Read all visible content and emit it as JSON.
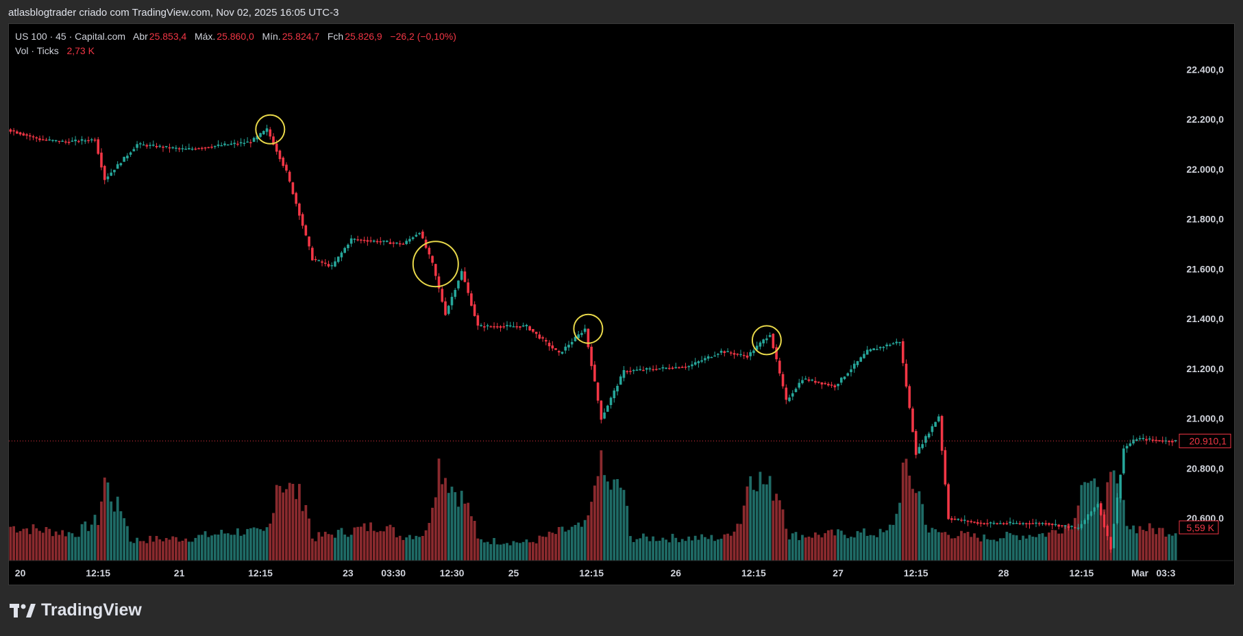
{
  "header": {
    "caption": "atlasblogtrader criado com TradingView.com, Nov 02, 2025 16:05 UTC-3"
  },
  "legend": {
    "symbol": "US 100 · 45 · Capital.com",
    "open_label": "Abr",
    "open": "25.853,4",
    "high_label": "Máx.",
    "high": "25.860,0",
    "low_label": "Mín.",
    "low": "25.824,7",
    "close_label": "Fch",
    "close": "25.826,9",
    "change": "−26,2 (−0,10%)",
    "volume_label": "Vol · Ticks",
    "volume": "2,73 K"
  },
  "brand": {
    "name": "TradingView"
  },
  "colors": {
    "up": "#26a69a",
    "down": "#f23645",
    "vol_up": "#1f6b66",
    "vol_down": "#8a2a2e",
    "highlight": "#e8d84a",
    "background": "#000000"
  },
  "chart_data": {
    "type": "candlestick",
    "y_ticks": [
      "22.400,0",
      "22.200,0",
      "22.000,0",
      "21.800,0",
      "21.600,0",
      "21.400,0",
      "21.200,0",
      "21.000,0",
      "20.800,0",
      "20.600,0"
    ],
    "ylim": [
      20430,
      22580
    ],
    "x_ticks": [
      "20",
      "12:15",
      "21",
      "12:15",
      "23",
      "03:30",
      "12:30",
      "25",
      "12:15",
      "26",
      "12:15",
      "27",
      "12:15",
      "28",
      "12:15",
      "Mar",
      "03:3"
    ],
    "x_tick_positions": [
      3,
      27,
      52,
      77,
      104,
      118,
      136,
      155,
      179,
      205,
      229,
      255,
      279,
      306,
      330,
      348,
      356
    ],
    "current_price": "20.910,1",
    "current_volume": "5,59 K",
    "price_path": [
      [
        0,
        22160
      ],
      [
        10,
        22120
      ],
      [
        18,
        22110
      ],
      [
        27,
        22120
      ],
      [
        30,
        21960
      ],
      [
        40,
        22100
      ],
      [
        55,
        22080
      ],
      [
        75,
        22110
      ],
      [
        80,
        22160
      ],
      [
        86,
        21990
      ],
      [
        90,
        21820
      ],
      [
        94,
        21640
      ],
      [
        100,
        21610
      ],
      [
        106,
        21720
      ],
      [
        115,
        21710
      ],
      [
        122,
        21700
      ],
      [
        127,
        21750
      ],
      [
        131,
        21620
      ],
      [
        135,
        21420
      ],
      [
        140,
        21590
      ],
      [
        145,
        21370
      ],
      [
        160,
        21370
      ],
      [
        170,
        21260
      ],
      [
        178,
        21360
      ],
      [
        183,
        21000
      ],
      [
        190,
        21190
      ],
      [
        210,
        21210
      ],
      [
        220,
        21270
      ],
      [
        228,
        21250
      ],
      [
        235,
        21340
      ],
      [
        240,
        21070
      ],
      [
        245,
        21160
      ],
      [
        255,
        21130
      ],
      [
        265,
        21270
      ],
      [
        275,
        21310
      ],
      [
        280,
        20860
      ],
      [
        287,
        21010
      ],
      [
        290,
        20600
      ],
      [
        300,
        20580
      ],
      [
        320,
        20580
      ],
      [
        330,
        20560
      ],
      [
        336,
        20660
      ],
      [
        340,
        20480
      ],
      [
        344,
        20880
      ],
      [
        348,
        20920
      ],
      [
        357,
        20910
      ]
    ],
    "vol_path": [
      [
        0,
        1.5
      ],
      [
        20,
        1.2
      ],
      [
        27,
        1.8
      ],
      [
        29,
        3.6
      ],
      [
        32,
        2.5
      ],
      [
        35,
        2.1
      ],
      [
        37,
        0.9
      ],
      [
        55,
        1.0
      ],
      [
        70,
        1.3
      ],
      [
        78,
        1.2
      ],
      [
        80,
        1.6
      ],
      [
        82,
        3.6
      ],
      [
        88,
        3.0
      ],
      [
        91,
        2.6
      ],
      [
        93,
        1.0
      ],
      [
        115,
        1.6
      ],
      [
        120,
        1.1
      ],
      [
        128,
        1.2
      ],
      [
        130,
        2.7
      ],
      [
        132,
        4.3
      ],
      [
        136,
        3.3
      ],
      [
        139,
        2.8
      ],
      [
        142,
        2.1
      ],
      [
        144,
        0.9
      ],
      [
        160,
        0.8
      ],
      [
        170,
        1.3
      ],
      [
        177,
        1.5
      ],
      [
        179,
        2.3
      ],
      [
        181,
        4.5
      ],
      [
        184,
        3.3
      ],
      [
        189,
        3.2
      ],
      [
        191,
        1.0
      ],
      [
        210,
        1.0
      ],
      [
        220,
        1.0
      ],
      [
        225,
        1.8
      ],
      [
        228,
        4.0
      ],
      [
        233,
        3.3
      ],
      [
        237,
        3.0
      ],
      [
        240,
        1.1
      ],
      [
        260,
        1.2
      ],
      [
        270,
        1.2
      ],
      [
        273,
        2.0
      ],
      [
        275,
        4.0
      ],
      [
        280,
        3.0
      ],
      [
        283,
        1.3
      ],
      [
        300,
        1.0
      ],
      [
        320,
        1.2
      ],
      [
        328,
        1.8
      ],
      [
        330,
        4.0
      ],
      [
        336,
        2.6
      ],
      [
        340,
        3.5
      ],
      [
        345,
        1.5
      ],
      [
        357,
        1.3
      ]
    ],
    "candle_count": 360,
    "highlighted_candles": [
      80,
      131,
      178,
      233
    ]
  }
}
